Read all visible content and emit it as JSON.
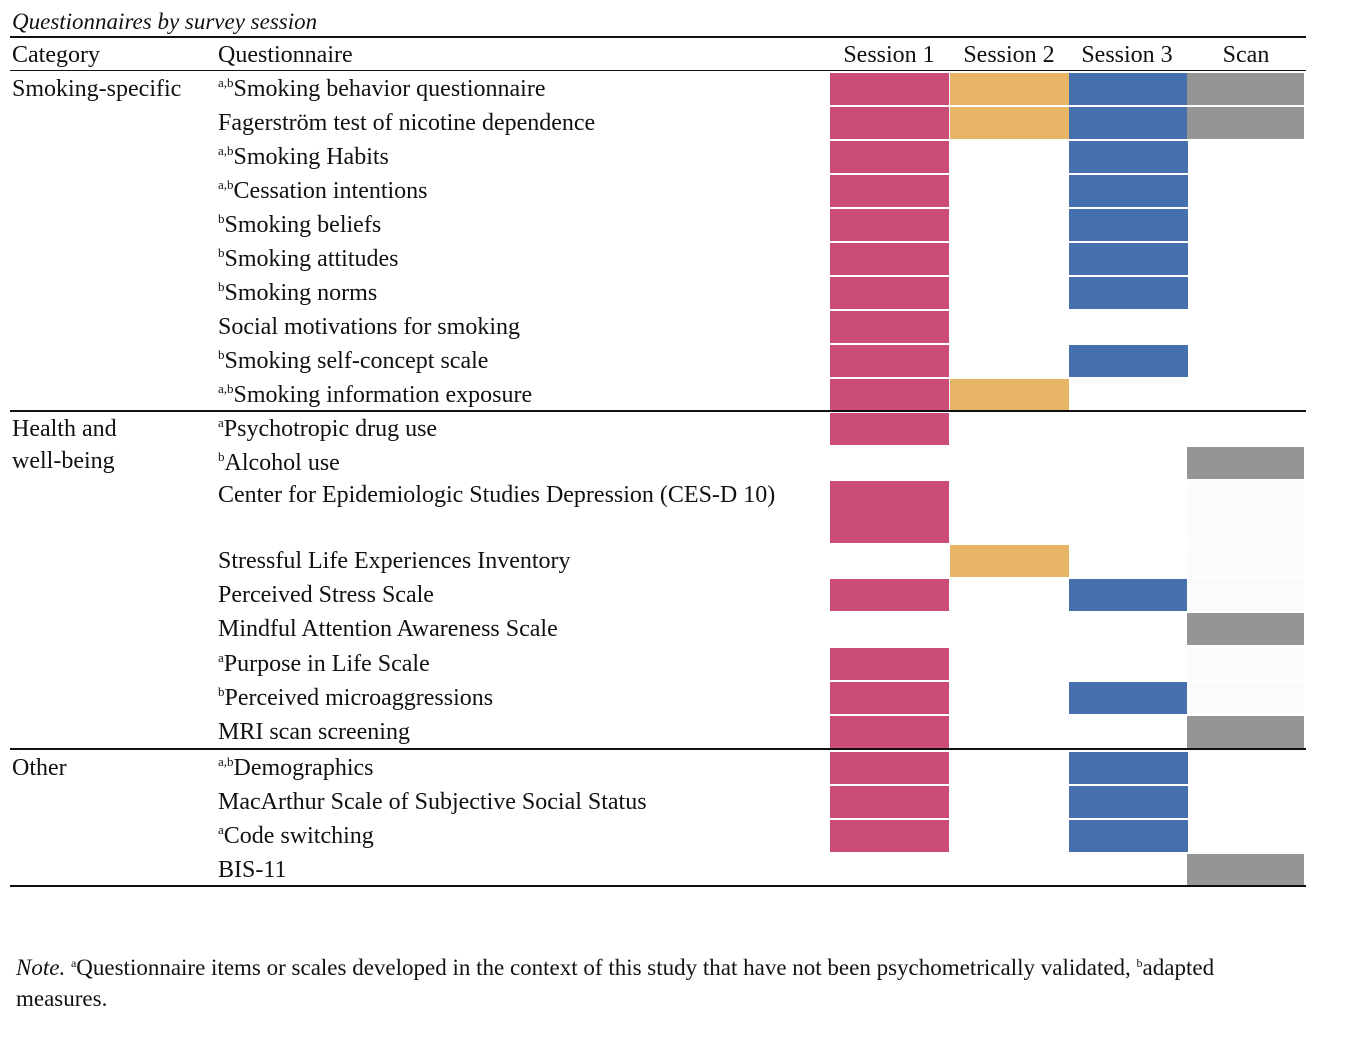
{
  "caption": "Questionnaires by survey session",
  "headers": {
    "category": "Category",
    "questionnaire": "Questionnaire",
    "sessions": [
      "Session 1",
      "Session 2",
      "Session 3",
      "Scan"
    ]
  },
  "colors": {
    "session1": "#cc4c78",
    "session2": "#e7b565",
    "session3": "#4670ad",
    "scan": "#959595",
    "faint": "#fbfbfb"
  },
  "groups": [
    {
      "category": "Smoking-specific",
      "rows": [
        {
          "sup": "a,b",
          "label": "Smoking behavior questionnaire",
          "marks": [
            1,
            1,
            1,
            1
          ]
        },
        {
          "sup": "",
          "label": "Fagerström test of nicotine dependence",
          "marks": [
            1,
            1,
            1,
            1
          ]
        },
        {
          "sup": "a,b",
          "label": "Smoking Habits",
          "marks": [
            1,
            0,
            1,
            0
          ]
        },
        {
          "sup": "a,b",
          "label": "Cessation intentions",
          "marks": [
            1,
            0,
            1,
            0
          ]
        },
        {
          "sup": "b",
          "label": "Smoking beliefs",
          "marks": [
            1,
            0,
            1,
            0
          ]
        },
        {
          "sup": "b",
          "label": "Smoking attitudes",
          "marks": [
            1,
            0,
            1,
            0
          ]
        },
        {
          "sup": "b",
          "label": "Smoking norms",
          "marks": [
            1,
            0,
            1,
            0
          ]
        },
        {
          "sup": "",
          "label": "Social motivations for smoking",
          "marks": [
            1,
            0,
            0,
            0
          ]
        },
        {
          "sup": "b",
          "label": "Smoking self-concept scale",
          "marks": [
            1,
            0,
            1,
            0
          ]
        },
        {
          "sup": "a,b",
          "label": "Smoking information exposure",
          "marks": [
            1,
            1,
            0,
            0
          ]
        }
      ]
    },
    {
      "category": "Health and well-being",
      "rows": [
        {
          "sup": "a",
          "label": "Psychotropic drug use",
          "marks": [
            1,
            0,
            0,
            0
          ]
        },
        {
          "sup": "b",
          "label": "Alcohol use",
          "marks": [
            0,
            0,
            0,
            1
          ]
        },
        {
          "sup": "",
          "label": "Center for Epidemiologic Studies Depression (CES-D 10)",
          "marks": [
            1,
            0,
            0,
            0
          ]
        },
        {
          "sup": "",
          "label": "Stressful Life Experiences Inventory",
          "marks": [
            0,
            1,
            0,
            0
          ]
        },
        {
          "sup": "",
          "label": "Perceived Stress Scale",
          "marks": [
            1,
            0,
            1,
            0
          ]
        },
        {
          "sup": "",
          "label": "Mindful Attention Awareness Scale",
          "marks": [
            0,
            0,
            0,
            1
          ]
        },
        {
          "sup": "a",
          "label": "Purpose in Life Scale",
          "marks": [
            1,
            0,
            0,
            0
          ]
        },
        {
          "sup": "b",
          "label": "Perceived microaggressions",
          "marks": [
            1,
            0,
            1,
            0
          ]
        },
        {
          "sup": "",
          "label": "MRI scan screening",
          "marks": [
            1,
            0,
            0,
            1
          ]
        }
      ]
    },
    {
      "category": "Other",
      "rows": [
        {
          "sup": "a,b",
          "label": "Demographics",
          "marks": [
            1,
            0,
            1,
            0
          ]
        },
        {
          "sup": "",
          "label": "MacArthur Scale of Subjective Social Status",
          "marks": [
            1,
            0,
            1,
            0
          ]
        },
        {
          "sup": "a",
          "label": "Code switching",
          "marks": [
            1,
            0,
            1,
            0
          ]
        },
        {
          "sup": "",
          "label": "BIS-11",
          "marks": [
            0,
            0,
            0,
            1
          ]
        }
      ]
    }
  ],
  "note": {
    "label": "Note.",
    "sup_a": "a",
    "text_a": "Questionnaire items or scales developed in the context of this study that have not been psychometrically validated, ",
    "sup_b": "b",
    "text_b": "adapted measures."
  }
}
